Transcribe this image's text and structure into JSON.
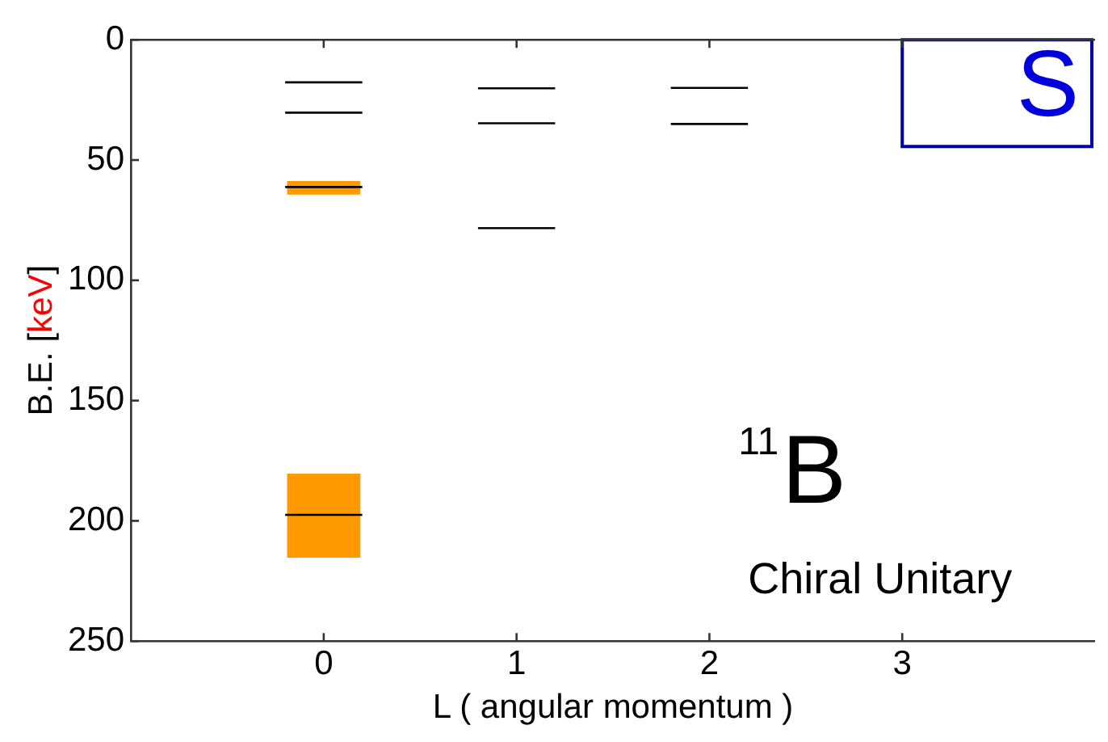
{
  "chart_data": {
    "type": "line",
    "xlabel": "L ( angular momentum )",
    "ylabel": "B.E. [keV]",
    "xlim": [
      -1,
      4
    ],
    "xticks": [
      0,
      1,
      2,
      3
    ],
    "ylim": [
      250,
      0
    ],
    "yticks": [
      0,
      50,
      100,
      150,
      200,
      250
    ],
    "grid": false,
    "legend": false,
    "marker": "none",
    "line_style": "solid",
    "series": [
      {
        "type": "bar",
        "color": "#ff9900",
        "x": [
          0,
          0
        ],
        "base": [
          58.7,
          180.4
        ],
        "values": [
          5.7,
          34.9
        ]
      },
      {
        "color": "#000000",
        "x": [
          -0.2,
          0.2
        ],
        "values": [
          17.7,
          17.7
        ]
      },
      {
        "color": "#000000",
        "x": [
          -0.2,
          0.2
        ],
        "values": [
          30.3,
          30.3
        ]
      },
      {
        "color": "#000000",
        "x": [
          -0.2,
          0.2
        ],
        "values": [
          61.2,
          61.2
        ]
      },
      {
        "color": "#000000",
        "x": [
          -0.2,
          0.2
        ],
        "values": [
          197.5,
          197.5
        ]
      },
      {
        "color": "#000000",
        "x": [
          0.8,
          1.2
        ],
        "values": [
          20.2,
          20.2
        ]
      },
      {
        "color": "#000000",
        "x": [
          0.8,
          1.2
        ],
        "values": [
          34.7,
          34.7
        ]
      },
      {
        "color": "#000000",
        "x": [
          0.8,
          1.2
        ],
        "values": [
          78.3,
          78.3
        ]
      },
      {
        "color": "#000000",
        "x": [
          1.8,
          2.2
        ],
        "values": [
          20,
          20
        ]
      },
      {
        "color": "#000000",
        "x": [
          1.8,
          2.2
        ],
        "values": [
          35,
          35
        ]
      }
    ],
    "annotations": [
      "$^{11}$B",
      "Chiral Unitary",
      "S"
    ]
  }
}
